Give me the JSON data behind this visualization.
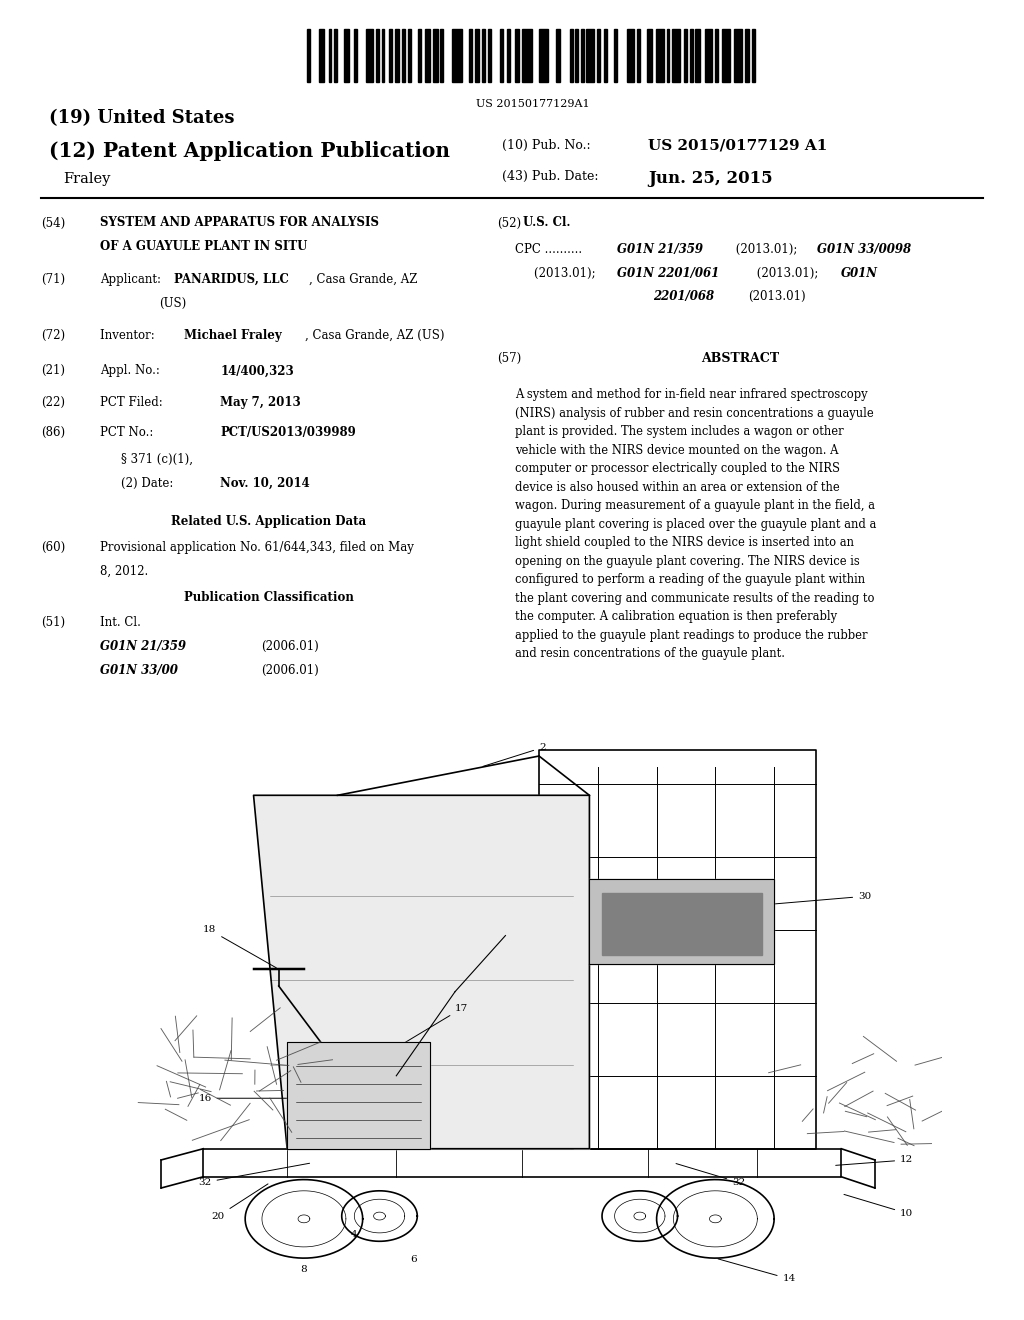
{
  "background_color": "#ffffff",
  "barcode_text": "US 20150177129A1",
  "title_19": "(19) United States",
  "title_12": "(12) Patent Application Publication",
  "pub_no_label": "(10) Pub. No.:",
  "pub_no_value": "US 2015/0177129 A1",
  "author": "Fraley",
  "pub_date_label": "(43) Pub. Date:",
  "pub_date_value": "Jun. 25, 2015",
  "field54_title1": "SYSTEM AND APPARATUS FOR ANALYSIS",
  "field54_title2": "OF A GUAYULE PLANT IN SITU",
  "field52_title": "U.S. Cl.",
  "field71_applicant_bold": "PANARIDUS, LLC",
  "field71_applicant_rest": ", Casa Grande, AZ",
  "field71_applicant2": "(US)",
  "field72_inventor_bold": "Michael Fraley",
  "field72_inventor_rest": ", Casa Grande, AZ (US)",
  "field21_val": "14/400,323",
  "field22_val": "May 7, 2013",
  "field86_val": "PCT/US2013/039989",
  "field86b_key": "§ 371 (c)(1),",
  "field86c_key": "(2) Date:",
  "field86c_val": "Nov. 10, 2014",
  "related_header": "Related U.S. Application Data",
  "field60_text1": "Provisional application No. 61/644,343, filed on May",
  "field60_text2": "8, 2012.",
  "pub_class_header": "Publication Classification",
  "field51_class1": "G01N 21/359",
  "field51_date1": "(2006.01)",
  "field51_class2": "G01N 33/00",
  "field51_date2": "(2006.01)",
  "field57_title": "ABSTRACT",
  "abstract_text": "A system and method for in-field near infrared spectroscopy\n(NIRS) analysis of rubber and resin concentrations a guayule\nplant is provided. The system includes a wagon or other\nvehicle with the NIRS device mounted on the wagon. A\ncomputer or processor electrically coupled to the NIRS\ndevice is also housed within an area or extension of the\nwagon. During measurement of a guayule plant in the field, a\nguayule plant covering is placed over the guayule plant and a\nlight shield coupled to the NIRS device is inserted into an\nopening on the guayule plant covering. The NIRS device is\nconfigured to perform a reading of the guayule plant within\nthe plant covering and communicate results of the reading to\nthe computer. A calibration equation is then preferably\napplied to the guayule plant readings to produce the rubber\nand resin concentrations of the guayule plant.",
  "lm": 0.04,
  "rm": 0.96,
  "cs": 0.485
}
